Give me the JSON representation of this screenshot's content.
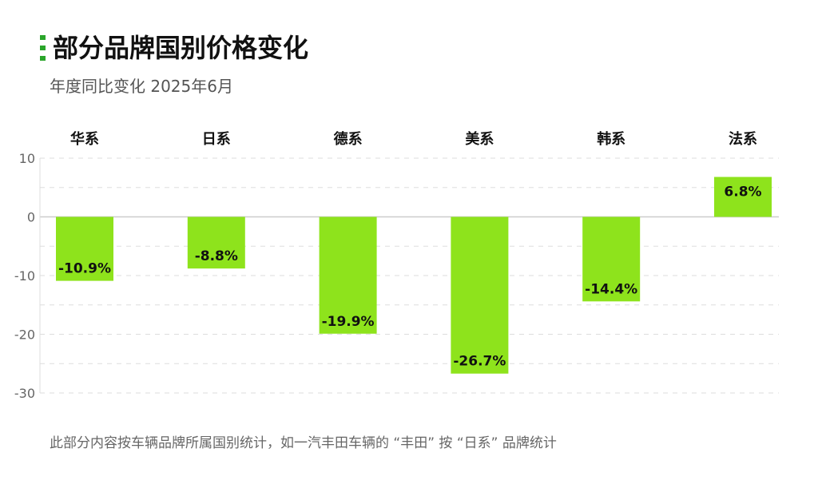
{
  "header": {
    "title": "部分品牌国别价格变化",
    "subtitle": "年度同比变化 2025年6月"
  },
  "footnote": "此部分内容按车辆品牌所属国别统计，如一汽丰田车辆的 “丰田” 按 “日系” 品牌统计",
  "colors": {
    "bar": "#8ee31c",
    "accent": "#2aa52a",
    "grid": "#dddddd",
    "zero_line": "#cccccc"
  },
  "chart_data": {
    "type": "bar",
    "categories": [
      "华系",
      "日系",
      "德系",
      "美系",
      "韩系",
      "法系"
    ],
    "values": [
      -10.9,
      -8.8,
      -19.9,
      -26.7,
      -14.4,
      6.8
    ],
    "value_labels": [
      "-10.9%",
      "-8.8%",
      "-19.9%",
      "-26.7%",
      "-14.4%",
      "6.8%"
    ],
    "y_ticks": [
      10,
      0,
      -10,
      -20,
      -30
    ],
    "ylim": [
      -30,
      10
    ],
    "category_axis_position": "top",
    "grid": true,
    "grid_style": "dashed",
    "legend": "none"
  }
}
